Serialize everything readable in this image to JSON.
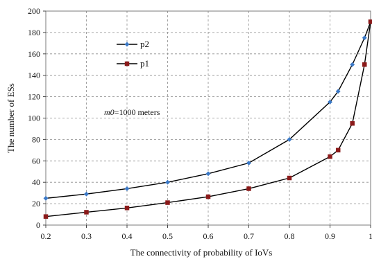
{
  "chart_data": {
    "type": "line",
    "xlabel": "The connectivity  of probability of IoVs",
    "ylabel": "The number of ESs",
    "xlim": [
      0.2,
      1.0
    ],
    "ylim": [
      0,
      200
    ],
    "xticks": [
      "0.2",
      "0.3",
      "0.4",
      "0.5",
      "0.6",
      "0.7",
      "0.8",
      "0.9",
      "1"
    ],
    "yticks": [
      "0",
      "20",
      "40",
      "60",
      "80",
      "100",
      "120",
      "140",
      "160",
      "180",
      "200"
    ],
    "grid": "dashed",
    "legend_position": "top-left",
    "annotation": {
      "italic": "m0",
      "rest": "=1000 meters"
    },
    "series": [
      {
        "name": "p2",
        "marker": "diamond",
        "marker_color": "#3a78c6",
        "line_color": "#000000",
        "points": [
          [
            0.2,
            25
          ],
          [
            0.3,
            29
          ],
          [
            0.4,
            34
          ],
          [
            0.5,
            40
          ],
          [
            0.6,
            48
          ],
          [
            0.7,
            58
          ],
          [
            0.8,
            80
          ],
          [
            0.9,
            115
          ],
          [
            0.92,
            125
          ],
          [
            0.955,
            150
          ],
          [
            0.985,
            175
          ],
          [
            1.0,
            190
          ]
        ]
      },
      {
        "name": "p1",
        "marker": "square",
        "marker_color": "#8b1a1a",
        "line_color": "#000000",
        "points": [
          [
            0.2,
            8
          ],
          [
            0.3,
            12
          ],
          [
            0.4,
            16
          ],
          [
            0.5,
            21
          ],
          [
            0.6,
            26.5
          ],
          [
            0.7,
            34
          ],
          [
            0.8,
            44
          ],
          [
            0.9,
            64
          ],
          [
            0.92,
            70
          ],
          [
            0.955,
            95
          ],
          [
            0.985,
            150
          ],
          [
            1.0,
            190
          ]
        ]
      }
    ]
  }
}
